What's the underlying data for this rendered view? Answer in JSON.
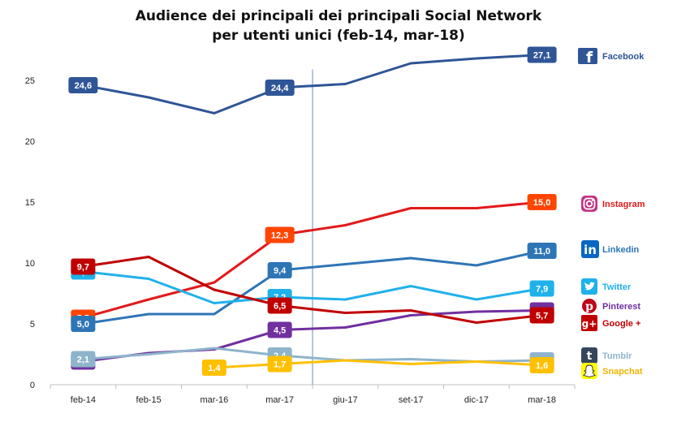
{
  "chart_data": {
    "type": "line",
    "title_line1": "Audience dei principali dei principali Social Network",
    "title_line2": "per utenti unici (feb-14, mar-18)",
    "categories": [
      "feb-14",
      "feb-15",
      "mar-16",
      "mar-17",
      "giu-17",
      "set-17",
      "dic-17",
      "mar-18"
    ],
    "y_ticks": [
      "0",
      "5",
      "10",
      "15",
      "20",
      "25"
    ],
    "ylim": [
      0,
      27
    ],
    "grid": false,
    "vertical_marker_between": [
      "mar-17",
      "giu-17"
    ],
    "series": [
      {
        "name": "Facebook",
        "color": "#2f5597",
        "label_bg": "#2f5597",
        "icon": "facebook-icon",
        "values": [
          24.6,
          23.6,
          22.3,
          24.4,
          24.7,
          26.4,
          26.8,
          27.1
        ],
        "labels": [
          {
            "i": 0,
            "text": "24,6"
          },
          {
            "i": 3,
            "text": "24,4"
          },
          {
            "i": 7,
            "text": "27,1"
          }
        ]
      },
      {
        "name": "Instagram",
        "color": "#e31a1c",
        "label_bg": "#ff4500",
        "icon": "instagram-icon",
        "values": [
          5.5,
          7.0,
          8.4,
          12.3,
          13.1,
          14.5,
          14.5,
          15.0
        ],
        "labels": [
          {
            "i": 0,
            "text": "5,5"
          },
          {
            "i": 3,
            "text": "12,3"
          },
          {
            "i": 7,
            "text": "15,0"
          }
        ]
      },
      {
        "name": "Linkedin",
        "color": "#2e75b6",
        "label_bg": "#2e75b6",
        "icon": "linkedin-icon",
        "values": [
          5.0,
          5.8,
          5.8,
          9.4,
          9.9,
          10.4,
          9.8,
          11.0
        ],
        "labels": [
          {
            "i": 0,
            "text": "5,0"
          },
          {
            "i": 3,
            "text": "9,4"
          },
          {
            "i": 7,
            "text": "11,0"
          }
        ]
      },
      {
        "name": "Twitter",
        "color": "#1fb1ea",
        "label_bg": "#1fb1ea",
        "icon": "twitter-icon",
        "values": [
          9.3,
          8.7,
          6.7,
          7.2,
          7.0,
          8.1,
          7.0,
          7.9
        ],
        "labels": [
          {
            "i": 0,
            "text": "9,3"
          },
          {
            "i": 3,
            "text": "7,2"
          },
          {
            "i": 7,
            "text": "7,9"
          }
        ]
      },
      {
        "name": "Pinterest",
        "color": "#7030a0",
        "label_bg": "#7030a0",
        "icon": "pinterest-icon",
        "values": [
          1.9,
          2.6,
          2.9,
          4.5,
          4.7,
          5.7,
          6.0,
          6.1
        ],
        "labels": [
          {
            "i": 0,
            "text": "1,9"
          },
          {
            "i": 3,
            "text": "4,5"
          },
          {
            "i": 7,
            "text": "6,1"
          }
        ]
      },
      {
        "name": "Google +",
        "color": "#c00000",
        "label_bg": "#c00000",
        "icon": "google-plus-icon",
        "values": [
          9.7,
          10.5,
          7.8,
          6.5,
          5.9,
          6.1,
          5.1,
          5.7
        ],
        "labels": [
          {
            "i": 0,
            "text": "9,7"
          },
          {
            "i": 3,
            "text": "6,5"
          },
          {
            "i": 7,
            "text": "5,7"
          }
        ]
      },
      {
        "name": "Tumblr",
        "color": "#8eb4cb",
        "label_bg": "#8eb4cb",
        "icon": "tumblr-icon",
        "values": [
          2.1,
          2.5,
          3.0,
          2.4,
          2.0,
          2.1,
          1.9,
          2.0
        ],
        "labels": [
          {
            "i": 0,
            "text": "2,1"
          },
          {
            "i": 3,
            "text": "2,4"
          },
          {
            "i": 7,
            "text": "2,0"
          }
        ]
      },
      {
        "name": "Snapchat",
        "color": "#ffc000",
        "label_bg": "#ffc000",
        "icon": "snapchat-icon",
        "values": [
          null,
          null,
          1.4,
          1.7,
          2.0,
          1.7,
          1.9,
          1.6
        ],
        "labels": [
          {
            "i": 2,
            "text": "1,4"
          },
          {
            "i": 3,
            "text": "1,7"
          },
          {
            "i": 7,
            "text": "1,6"
          }
        ]
      }
    ]
  }
}
